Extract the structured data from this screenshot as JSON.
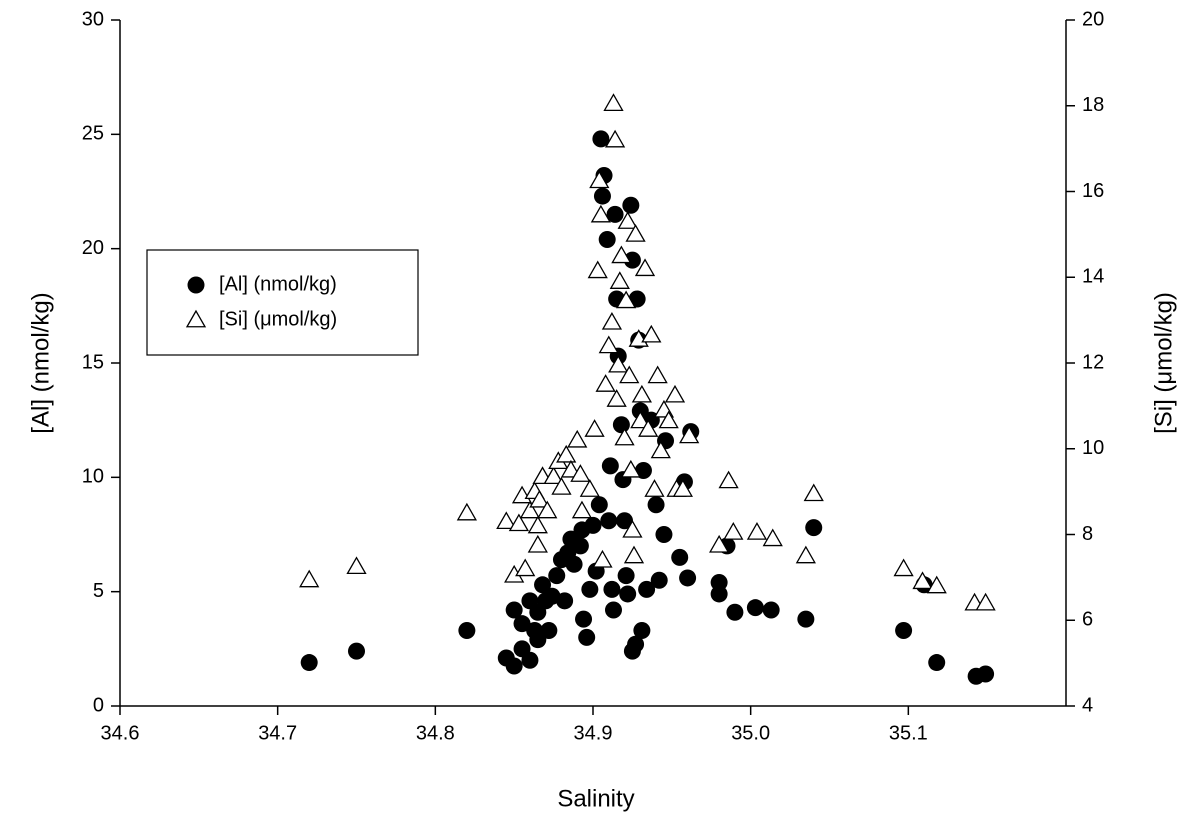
{
  "chart_data": {
    "type": "scatter",
    "xlabel": "Salinity",
    "ylabel": "[Al] (nmol/kg)",
    "y2label": "[Si] (μmol/kg)",
    "xlim": [
      34.6,
      35.2
    ],
    "xticks": [
      34.6,
      34.7,
      34.8,
      34.9,
      {
        "value": 35,
        "label": "35.0"
      },
      35.1
    ],
    "ylim": [
      0,
      30
    ],
    "yticks": [
      0,
      5,
      10,
      15,
      20,
      25,
      30
    ],
    "y2lim": [
      4,
      20
    ],
    "y2ticks": [
      4,
      6,
      8,
      10,
      12,
      14,
      16,
      18,
      20
    ],
    "grid": false,
    "legend": "center-left",
    "series": [
      {
        "name": "[Al] (nmol/kg)",
        "color": "#000000",
        "marker": "circle",
        "x": [
          34.72,
          34.75,
          34.82,
          34.845,
          34.85,
          34.85,
          34.855,
          34.855,
          34.86,
          34.86,
          34.863,
          34.865,
          34.865,
          34.868,
          34.87,
          34.872,
          34.874,
          34.877,
          34.88,
          34.882,
          34.884,
          34.886,
          34.888,
          34.892,
          34.893,
          34.894,
          34.896,
          34.898,
          34.9,
          34.902,
          34.904,
          34.905,
          34.906,
          34.907,
          34.909,
          34.91,
          34.911,
          34.912,
          34.913,
          34.914,
          34.915,
          34.916,
          34.918,
          34.919,
          34.92,
          34.921,
          34.922,
          34.924,
          34.925,
          34.925,
          34.927,
          34.928,
          34.929,
          34.93,
          34.931,
          34.932,
          34.934,
          34.937,
          34.94,
          34.942,
          34.945,
          34.946,
          34.955,
          34.958,
          34.96,
          34.962,
          34.98,
          34.98,
          34.985,
          34.99,
          35.003,
          35.013,
          35.035,
          35.04,
          35.097,
          35.11,
          35.118,
          35.143,
          35.149
        ],
        "values": [
          1.9,
          2.4,
          3.3,
          2.1,
          1.75,
          4.2,
          3.6,
          2.5,
          2.0,
          4.6,
          3.3,
          4.1,
          2.9,
          5.3,
          4.6,
          3.3,
          4.8,
          5.7,
          6.4,
          4.6,
          6.7,
          7.3,
          6.2,
          7.0,
          7.7,
          3.8,
          3.0,
          5.1,
          7.9,
          5.9,
          8.8,
          24.8,
          22.3,
          23.2,
          20.4,
          8.1,
          10.5,
          5.1,
          4.2,
          21.5,
          17.8,
          15.3,
          12.3,
          9.9,
          8.1,
          5.7,
          4.9,
          21.9,
          19.5,
          2.4,
          2.7,
          17.8,
          16.0,
          12.9,
          3.3,
          10.3,
          5.1,
          12.5,
          8.8,
          5.5,
          7.5,
          11.6,
          6.5,
          9.8,
          5.6,
          12.0,
          5.4,
          4.9,
          7.0,
          4.1,
          4.3,
          4.2,
          3.8,
          7.8,
          3.3,
          5.3,
          1.9,
          1.3,
          1.4
        ]
      },
      {
        "name": "[Si] (μmol/kg)",
        "color": "#000000",
        "marker": "triangle-open",
        "axis": "y2",
        "x": [
          34.72,
          34.75,
          34.82,
          34.845,
          34.85,
          34.853,
          34.855,
          34.857,
          34.86,
          34.863,
          34.865,
          34.865,
          34.866,
          34.868,
          34.871,
          34.875,
          34.878,
          34.88,
          34.883,
          34.886,
          34.89,
          34.892,
          34.893,
          34.898,
          34.901,
          34.903,
          34.904,
          34.905,
          34.906,
          34.908,
          34.91,
          34.912,
          34.913,
          34.914,
          34.915,
          34.916,
          34.917,
          34.918,
          34.92,
          34.921,
          34.922,
          34.923,
          34.924,
          34.925,
          34.926,
          34.927,
          34.929,
          34.93,
          34.931,
          34.933,
          34.935,
          34.937,
          34.939,
          34.941,
          34.943,
          34.945,
          34.948,
          34.952,
          34.953,
          34.957,
          34.961,
          34.98,
          34.986,
          34.989,
          35.004,
          35.014,
          35.035,
          35.04,
          35.097,
          35.109,
          35.118,
          35.142,
          35.149
        ],
        "values": [
          6.94,
          7.25,
          8.5,
          8.3,
          7.05,
          8.25,
          8.9,
          7.2,
          8.55,
          9.0,
          7.75,
          8.2,
          8.8,
          9.35,
          8.55,
          9.35,
          9.7,
          9.1,
          9.85,
          9.5,
          10.2,
          9.4,
          8.55,
          9.05,
          10.45,
          14.15,
          16.25,
          15.45,
          7.4,
          11.5,
          12.4,
          12.95,
          18.05,
          17.2,
          11.15,
          11.95,
          13.9,
          14.5,
          10.25,
          13.45,
          15.3,
          11.7,
          9.5,
          8.1,
          7.5,
          15.0,
          12.55,
          10.65,
          11.25,
          14.2,
          10.45,
          12.65,
          9.05,
          11.7,
          9.95,
          10.9,
          10.65,
          11.25,
          9.05,
          9.05,
          10.3,
          7.75,
          9.25,
          8.05,
          8.05,
          7.9,
          7.5,
          8.95,
          7.2,
          6.9,
          6.8,
          6.4,
          6.4
        ]
      }
    ]
  }
}
